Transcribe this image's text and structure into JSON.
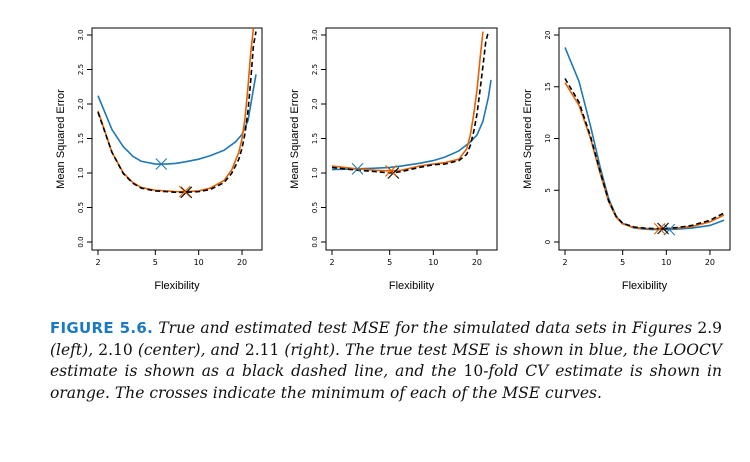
{
  "colors": {
    "true": "#1f78b4",
    "loocv": "#000000",
    "kfold": "#e66100"
  },
  "chart_data": [
    {
      "type": "line",
      "xscale": "log",
      "xlabel": "Flexibility",
      "ylabel": "Mean Squared Error",
      "xlim": [
        2,
        25
      ],
      "ylim": [
        0,
        3
      ],
      "xticks": [
        2,
        5,
        10,
        20
      ],
      "xtick_labels": [
        "2",
        "5",
        "10",
        "20"
      ],
      "yticks": [
        0,
        0.5,
        1,
        1.5,
        2,
        2.5,
        3
      ],
      "ytick_labels": [
        "0.0",
        "0.5",
        "1.0",
        "1.5",
        "2.0",
        "2.5",
        "3.0"
      ],
      "series": [
        {
          "key": "true",
          "x": [
            2,
            2.5,
            3,
            3.5,
            4,
            5,
            5.5,
            6,
            7,
            8,
            10,
            12,
            15,
            18,
            20,
            22,
            25
          ],
          "y": [
            2.12,
            1.63,
            1.38,
            1.24,
            1.17,
            1.13,
            1.13,
            1.13,
            1.14,
            1.16,
            1.2,
            1.25,
            1.33,
            1.45,
            1.56,
            1.76,
            2.43
          ],
          "min": [
            5.5,
            1.13
          ]
        },
        {
          "key": "loocv",
          "dashed": true,
          "x": [
            2,
            2.5,
            3,
            3.5,
            4,
            5,
            6,
            7,
            8,
            10,
            12,
            15,
            17,
            19,
            20,
            21,
            22,
            23,
            24,
            25
          ],
          "y": [
            1.88,
            1.3,
            0.99,
            0.85,
            0.78,
            0.74,
            0.73,
            0.72,
            0.72,
            0.73,
            0.76,
            0.86,
            1.0,
            1.2,
            1.36,
            1.58,
            1.9,
            2.35,
            2.85,
            3.05
          ],
          "min": [
            8.2,
            0.72
          ]
        },
        {
          "key": "kfold",
          "x": [
            2,
            2.5,
            3,
            3.5,
            4,
            5,
            6,
            7,
            8,
            10,
            12,
            15,
            17,
            19,
            20,
            21,
            22,
            23,
            24
          ],
          "y": [
            1.9,
            1.3,
            1.0,
            0.86,
            0.79,
            0.75,
            0.74,
            0.73,
            0.73,
            0.74,
            0.78,
            0.89,
            1.05,
            1.3,
            1.5,
            1.8,
            2.25,
            2.75,
            3.1
          ],
          "min": [
            8,
            0.73
          ]
        }
      ]
    },
    {
      "type": "line",
      "xscale": "log",
      "xlabel": "Flexibility",
      "ylabel": "Mean Squared Error",
      "xlim": [
        2,
        25
      ],
      "ylim": [
        0,
        3
      ],
      "xticks": [
        2,
        5,
        10,
        20
      ],
      "xtick_labels": [
        "2",
        "5",
        "10",
        "20"
      ],
      "yticks": [
        0,
        0.5,
        1,
        1.5,
        2,
        2.5,
        3
      ],
      "ytick_labels": [
        "0.0",
        "0.5",
        "1.0",
        "1.5",
        "2.0",
        "2.5",
        "3.0"
      ],
      "series": [
        {
          "key": "true",
          "x": [
            2,
            3,
            4,
            5,
            6,
            8,
            10,
            12,
            15,
            18,
            20,
            22,
            24,
            25
          ],
          "y": [
            1.05,
            1.06,
            1.07,
            1.08,
            1.1,
            1.14,
            1.18,
            1.23,
            1.32,
            1.45,
            1.55,
            1.75,
            2.1,
            2.35
          ],
          "min": [
            3,
            1.06
          ]
        },
        {
          "key": "loocv",
          "dashed": true,
          "x": [
            2,
            3,
            4,
            5,
            6,
            8,
            10,
            12,
            15,
            17,
            18,
            19,
            20,
            21,
            22,
            23,
            24
          ],
          "y": [
            1.08,
            1.04,
            1.02,
            1.0,
            1.02,
            1.08,
            1.12,
            1.13,
            1.18,
            1.27,
            1.4,
            1.6,
            1.85,
            2.2,
            2.55,
            2.9,
            3.05
          ],
          "min": [
            5.3,
            1.0
          ]
        },
        {
          "key": "kfold",
          "x": [
            2,
            3,
            4,
            5,
            6,
            8,
            10,
            12,
            15,
            17,
            18,
            19,
            20,
            21,
            22
          ],
          "y": [
            1.1,
            1.06,
            1.04,
            1.03,
            1.04,
            1.1,
            1.13,
            1.15,
            1.2,
            1.35,
            1.55,
            1.85,
            2.2,
            2.65,
            3.05
          ],
          "min": [
            5.1,
            1.03
          ]
        }
      ]
    },
    {
      "type": "line",
      "xscale": "log",
      "xlabel": "Flexibility",
      "ylabel": "Mean Squared Error",
      "xlim": [
        2,
        25
      ],
      "ylim": [
        0,
        20
      ],
      "xticks": [
        2,
        5,
        10,
        20
      ],
      "xtick_labels": [
        "2",
        "5",
        "10",
        "20"
      ],
      "yticks": [
        0,
        5,
        10,
        15,
        20
      ],
      "ytick_labels": [
        "0",
        "5",
        "10",
        "15",
        "20"
      ],
      "series": [
        {
          "key": "true",
          "x": [
            2,
            2.5,
            3,
            3.5,
            4,
            4.5,
            5,
            6,
            7,
            8,
            10,
            12,
            15,
            20,
            25
          ],
          "y": [
            18.8,
            15.5,
            11.2,
            7.2,
            4.2,
            2.5,
            1.8,
            1.35,
            1.25,
            1.2,
            1.2,
            1.25,
            1.35,
            1.6,
            2.1
          ],
          "min": [
            10.5,
            1.2
          ]
        },
        {
          "key": "loocv",
          "dashed": true,
          "x": [
            2,
            2.5,
            3,
            3.5,
            4,
            4.5,
            5,
            6,
            7,
            8,
            10,
            12,
            15,
            20,
            25
          ],
          "y": [
            15.8,
            13.5,
            10.2,
            6.8,
            4.0,
            2.5,
            1.8,
            1.45,
            1.35,
            1.3,
            1.3,
            1.4,
            1.6,
            2.1,
            2.8
          ],
          "min": [
            9.5,
            1.3
          ]
        },
        {
          "key": "kfold",
          "x": [
            2,
            2.5,
            3,
            3.5,
            4,
            4.5,
            5,
            6,
            7,
            8,
            10,
            12,
            15,
            20,
            25
          ],
          "y": [
            15.4,
            13.2,
            10.0,
            6.6,
            3.9,
            2.4,
            1.75,
            1.4,
            1.32,
            1.28,
            1.28,
            1.35,
            1.5,
            1.95,
            2.6
          ],
          "min": [
            9,
            1.28
          ]
        }
      ]
    }
  ],
  "caption": {
    "label": "FIGURE 5.6.",
    "parts": [
      " True and estimated test MSE for the simulated data sets in Figures ",
      "2.9",
      " (left), ",
      "2.10",
      " (center), and ",
      "2.11",
      " (right). The true test MSE is shown in blue, the LOOCV estimate is shown as a black dashed line, and the ",
      "10",
      "-fold CV estimate is shown in orange. The crosses indicate the minimum of each of the MSE curves."
    ]
  }
}
